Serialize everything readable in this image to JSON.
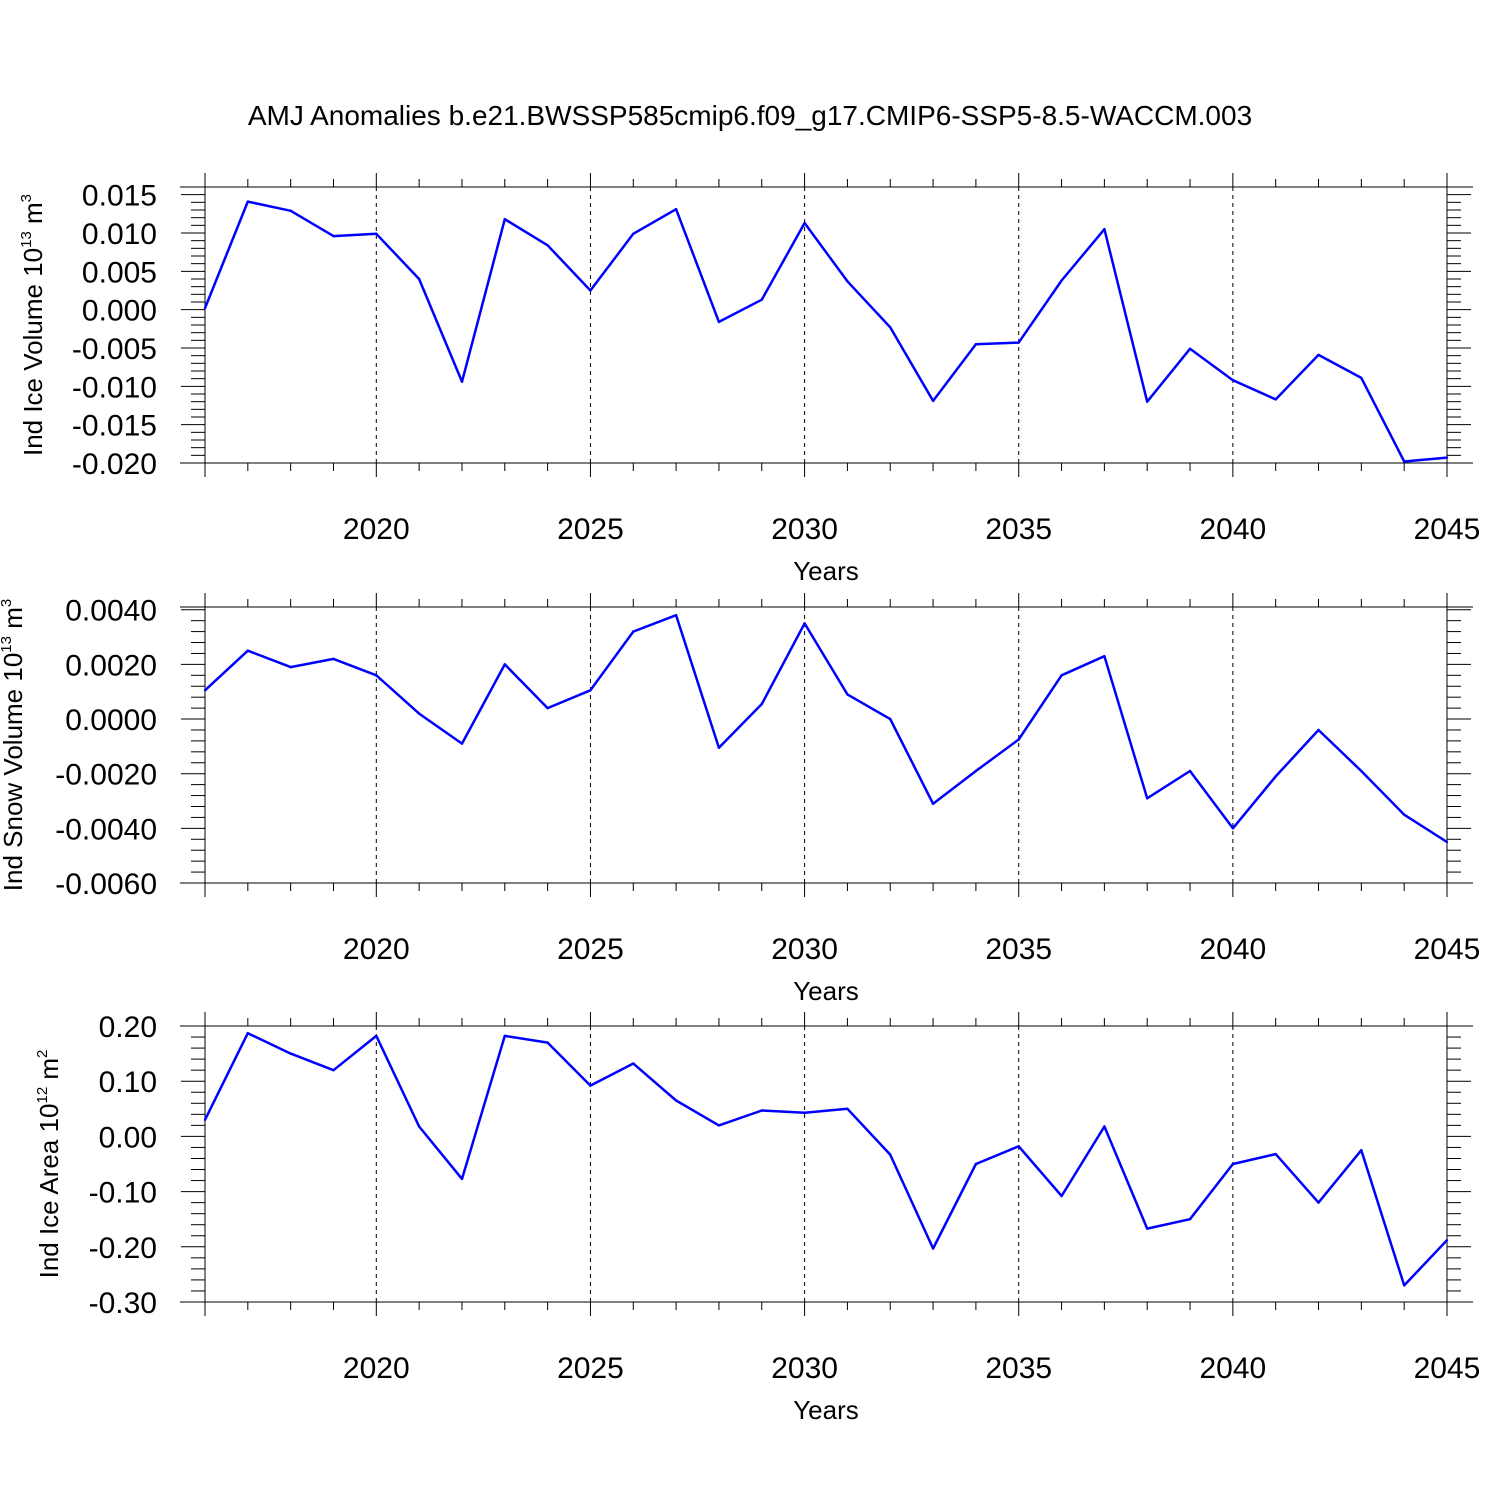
{
  "figure": {
    "title": "AMJ Anomalies b.e21.BWSSP585cmip6.f09_g17.CMIP6-SSP5-8.5-WACCM.003",
    "line_color": "#0000ff"
  },
  "chart_data": [
    {
      "type": "line",
      "ylabel": {
        "text": "Ind Ice Volume 10",
        "exponent": "13",
        "unit": " m",
        "unit_exponent": "3"
      },
      "xlabel": "Years",
      "xlim": [
        2016,
        2045
      ],
      "ylim": [
        -0.02,
        0.016
      ],
      "x_ticks": [
        2020,
        2025,
        2030,
        2035,
        2040,
        2045
      ],
      "x_tick_labels": [
        "2020",
        "2025",
        "2030",
        "2035",
        "2040",
        "2045"
      ],
      "y_ticks": [
        -0.02,
        -0.015,
        -0.01,
        -0.005,
        0.0,
        0.005,
        0.01,
        0.015
      ],
      "y_tick_labels": [
        "-0.020",
        "-0.015",
        "-0.010",
        "-0.005",
        "0.000",
        "0.005",
        "0.010",
        "0.015"
      ],
      "grid": "dashed vertical at major x ticks",
      "x": [
        2016,
        2017,
        2018,
        2019,
        2020,
        2021,
        2022,
        2023,
        2024,
        2025,
        2026,
        2027,
        2028,
        2029,
        2030,
        2031,
        2032,
        2033,
        2034,
        2035,
        2036,
        2037,
        2038,
        2039,
        2040,
        2041,
        2042,
        2043,
        2044,
        2045
      ],
      "y": [
        0.0002,
        0.0141,
        0.0129,
        0.0096,
        0.0099,
        0.004,
        -0.0094,
        0.0118,
        0.0084,
        0.0025,
        0.0099,
        0.0131,
        -0.0016,
        0.0013,
        0.0113,
        0.0037,
        -0.0023,
        -0.0119,
        -0.0045,
        -0.0043,
        0.0038,
        0.0105,
        -0.012,
        -0.0051,
        -0.0092,
        -0.0117,
        -0.0059,
        -0.0089,
        -0.0198,
        -0.0193
      ]
    },
    {
      "type": "line",
      "ylabel": {
        "text": "Ind Snow Volume 10",
        "exponent": "13",
        "unit": " m",
        "unit_exponent": "3"
      },
      "xlabel": "Years",
      "xlim": [
        2016,
        2045
      ],
      "ylim": [
        -0.006,
        0.0041
      ],
      "x_ticks": [
        2020,
        2025,
        2030,
        2035,
        2040,
        2045
      ],
      "x_tick_labels": [
        "2020",
        "2025",
        "2030",
        "2035",
        "2040",
        "2045"
      ],
      "y_ticks": [
        -0.006,
        -0.004,
        -0.002,
        0.0,
        0.002,
        0.004
      ],
      "y_tick_labels": [
        "-0.0060",
        "-0.0040",
        "-0.0020",
        "0.0000",
        "0.0020",
        "0.0040"
      ],
      "grid": "dashed vertical at major x ticks",
      "x": [
        2016,
        2017,
        2018,
        2019,
        2020,
        2021,
        2022,
        2023,
        2024,
        2025,
        2026,
        2027,
        2028,
        2029,
        2030,
        2031,
        2032,
        2033,
        2034,
        2035,
        2036,
        2037,
        2038,
        2039,
        2040,
        2041,
        2042,
        2043,
        2044,
        2045
      ],
      "y": [
        0.00105,
        0.0025,
        0.0019,
        0.0022,
        0.0016,
        0.0002,
        -0.0009,
        0.002,
        0.0004,
        0.00105,
        0.0032,
        0.0038,
        -0.00105,
        0.00055,
        0.0035,
        0.0009,
        0.0,
        -0.0031,
        -0.0019,
        -0.00075,
        0.0016,
        0.0023,
        -0.0029,
        -0.0019,
        -0.004,
        -0.0021,
        -0.0004,
        -0.0019,
        -0.0035,
        -0.0045
      ]
    },
    {
      "type": "line",
      "ylabel": {
        "text": "Ind Ice Area 10",
        "exponent": "12",
        "unit": " m",
        "unit_exponent": "2"
      },
      "xlabel": "Years",
      "xlim": [
        2016,
        2045
      ],
      "ylim": [
        -0.3,
        0.2
      ],
      "x_ticks": [
        2020,
        2025,
        2030,
        2035,
        2040,
        2045
      ],
      "x_tick_labels": [
        "2020",
        "2025",
        "2030",
        "2035",
        "2040",
        "2045"
      ],
      "y_ticks": [
        -0.3,
        -0.2,
        -0.1,
        0.0,
        0.1,
        0.2
      ],
      "y_tick_labels": [
        "-0.30",
        "-0.20",
        "-0.10",
        "0.00",
        "0.10",
        "0.20"
      ],
      "grid": "dashed vertical at major x ticks",
      "x": [
        2016,
        2017,
        2018,
        2019,
        2020,
        2021,
        2022,
        2023,
        2024,
        2025,
        2026,
        2027,
        2028,
        2029,
        2030,
        2031,
        2032,
        2033,
        2034,
        2035,
        2036,
        2037,
        2038,
        2039,
        2040,
        2041,
        2042,
        2043,
        2044,
        2045
      ],
      "y": [
        0.03,
        0.187,
        0.15,
        0.12,
        0.182,
        0.018,
        -0.077,
        0.182,
        0.17,
        0.092,
        0.132,
        0.065,
        0.02,
        0.047,
        0.043,
        0.05,
        -0.033,
        -0.203,
        -0.05,
        -0.018,
        -0.108,
        0.018,
        -0.167,
        -0.15,
        -0.05,
        -0.032,
        -0.12,
        -0.025,
        -0.27,
        -0.188
      ]
    }
  ]
}
